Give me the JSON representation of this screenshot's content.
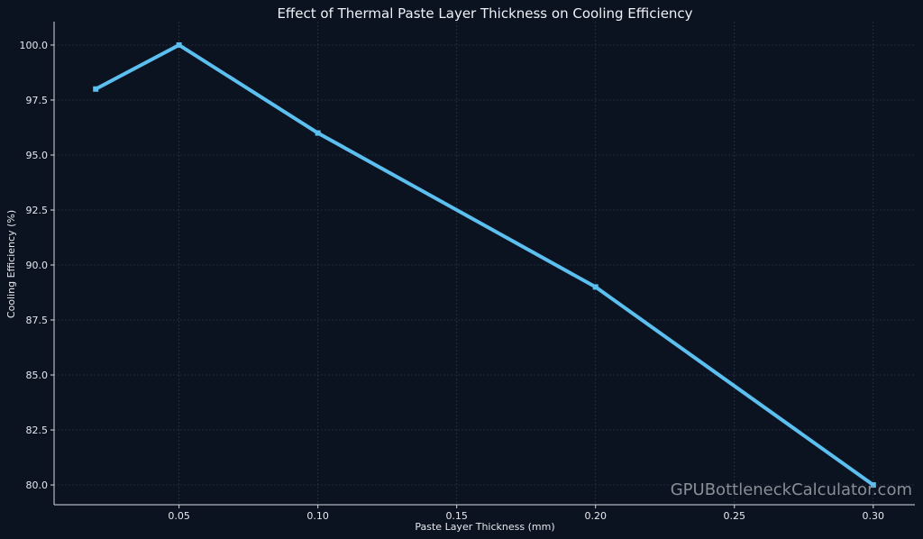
{
  "chart_data": {
    "type": "line",
    "title": "Effect of Thermal Paste Layer Thickness on Cooling Efficiency",
    "xlabel": "Paste Layer Thickness (mm)",
    "ylabel": "Cooling Efficiency (%)",
    "x": [
      0.02,
      0.05,
      0.1,
      0.2,
      0.3
    ],
    "series": [
      {
        "values": [
          98.0,
          100.0,
          96.0,
          89.0,
          80.0
        ]
      }
    ],
    "xlim": [
      0.005,
      0.315
    ],
    "ylim": [
      79.1,
      100.9
    ],
    "xticks": [
      0.05,
      0.1,
      0.15,
      0.2,
      0.25,
      0.3
    ],
    "xtick_labels": [
      "0.05",
      "0.10",
      "0.15",
      "0.20",
      "0.25",
      "0.30"
    ],
    "yticks": [
      80.0,
      82.5,
      85.0,
      87.5,
      90.0,
      92.5,
      95.0,
      97.5,
      100.0
    ],
    "ytick_labels": [
      "80.0",
      "82.5",
      "85.0",
      "87.5",
      "90.0",
      "92.5",
      "95.0",
      "97.5",
      "100.0"
    ],
    "grid": true,
    "line_color": "#5bc0f0",
    "background_color": "#0b1220",
    "watermark": "GPUBottleneckCalculator.com"
  }
}
